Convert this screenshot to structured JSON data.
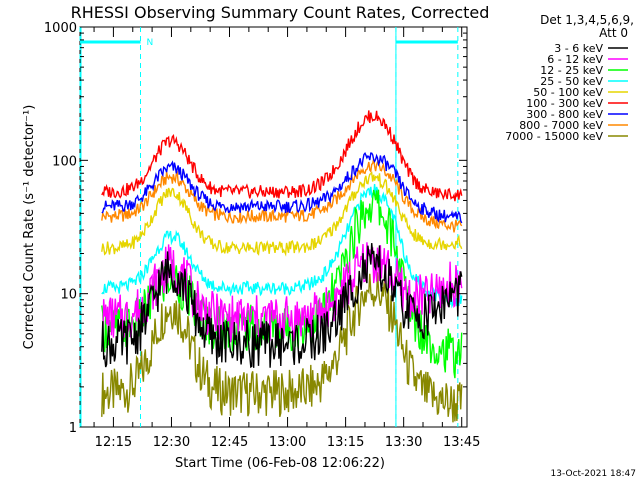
{
  "chart_data": {
    "type": "line",
    "title": "RHESSI Observing Summary Count Rates, Corrected",
    "xlabel": "Start Time (06-Feb-08 12:06:22)",
    "ylabel": "Corrected Count Rate",
    "ylabel_unit": "(s⁻¹ detector⁻¹)",
    "y_scale": "log",
    "ylim": [
      1,
      1000
    ],
    "y_ticks": [
      1,
      10,
      100,
      1000
    ],
    "y_tick_labels": [
      "1",
      "10",
      "100",
      "1000"
    ],
    "x_range_minutes": [
      "12:06:22",
      "13:46:22"
    ],
    "x_ticks": [
      "12:15",
      "12:30",
      "12:45",
      "13:00",
      "13:15",
      "13:30",
      "13:45"
    ],
    "legend_header": [
      "Det 1,3,4,5,6,9,",
      "Att 0"
    ],
    "legend_position": "right",
    "series": [
      {
        "name": "3 - 6 keV",
        "color": "#000000",
        "base": 4.2,
        "peak1": 15,
        "peak2": 16,
        "post": 10
      },
      {
        "name": "6 - 12 keV",
        "color": "#ff00ff",
        "base": 6.5,
        "peak1": 16,
        "peak2": 18,
        "post": 12
      },
      {
        "name": "12 - 25 keV",
        "color": "#00ff00",
        "base": 5.5,
        "peak1": 13,
        "peak2": 47,
        "post": 3.5
      },
      {
        "name": "25 - 50 keV",
        "color": "#00ffff",
        "base": 11,
        "peak1": 27,
        "peak2": 60,
        "post": 9
      },
      {
        "name": "50 - 100 keV",
        "color": "#e6d500",
        "base": 22,
        "peak1": 58,
        "peak2": 75,
        "post": 24
      },
      {
        "name": "100 - 300 keV",
        "color": "#ff0000",
        "base": 58,
        "peak1": 140,
        "peak2": 215,
        "post": 55
      },
      {
        "name": "300 - 800 keV",
        "color": "#0000ff",
        "base": 45,
        "peak1": 88,
        "peak2": 105,
        "post": 37
      },
      {
        "name": "800 - 7000 keV",
        "color": "#ff8800",
        "base": 38,
        "peak1": 75,
        "peak2": 92,
        "post": 32
      },
      {
        "name": "7000 - 15000 keV",
        "color": "#888800",
        "base": 1.8,
        "peak1": 8,
        "peak2": 11,
        "post": 1.5
      }
    ],
    "flags": [
      {
        "label": "N",
        "start": "12:06:22",
        "end": "12:22"
      },
      {
        "label": "",
        "start": "13:28",
        "end": "13:44"
      }
    ],
    "timestamp": "13-Oct-2021 18:47"
  }
}
